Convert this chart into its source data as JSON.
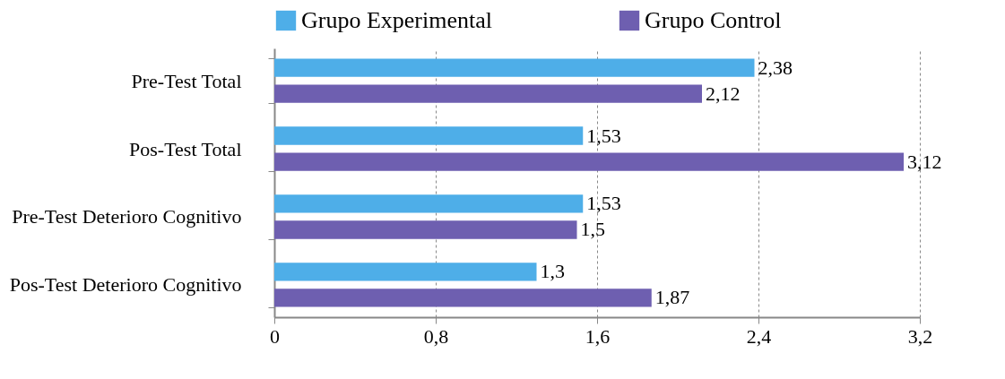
{
  "chart_data": {
    "type": "bar",
    "orientation": "horizontal",
    "categories": [
      "Pre-Test Total",
      "Pos-Test Total",
      "Pre-Test Deterioro Cognitivo",
      "Pos-Test Deterioro Cognitivo"
    ],
    "series": [
      {
        "name": "Grupo Experimental",
        "color": "#4eaee8",
        "values": [
          2.38,
          1.53,
          1.53,
          1.3
        ],
        "value_labels": [
          "2,38",
          "1,53",
          "1,53",
          "1,3"
        ]
      },
      {
        "name": "Grupo Control",
        "color": "#6e5fb0",
        "values": [
          2.12,
          3.12,
          1.5,
          1.87
        ],
        "value_labels": [
          "2,12",
          "3,12",
          "1,5",
          "1,87"
        ]
      }
    ],
    "xlim": [
      0,
      3.2
    ],
    "xticks": [
      0,
      {
        "value": 0.8,
        "label": "0,8"
      },
      {
        "value": 1.6,
        "label": "1,6"
      },
      {
        "value": 2.4,
        "label": "2,4"
      },
      {
        "value": 3.2,
        "label": "3,2"
      }
    ],
    "grid": "x",
    "legend": "top"
  }
}
